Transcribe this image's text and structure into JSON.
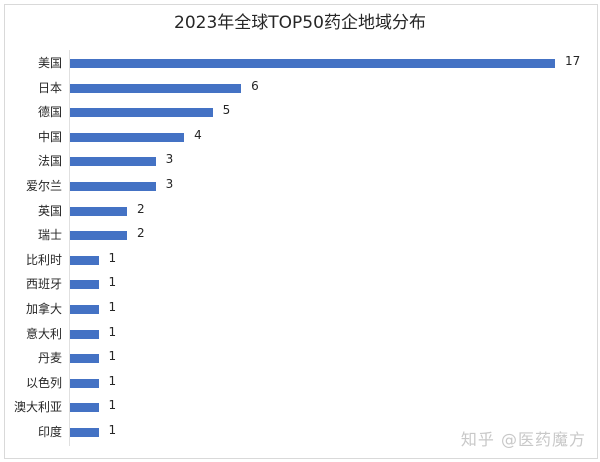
{
  "chart_data": {
    "type": "bar",
    "orientation": "horizontal",
    "title": "2023年全球TOP50药企地域分布",
    "xlabel": "",
    "ylabel": "",
    "categories": [
      "美国",
      "日本",
      "德国",
      "中国",
      "法国",
      "爱尔兰",
      "英国",
      "瑞士",
      "比利时",
      "西班牙",
      "加拿大",
      "意大利",
      "丹麦",
      "以色列",
      "澳大利亚",
      "印度"
    ],
    "values": [
      17,
      6,
      5,
      4,
      3,
      3,
      2,
      2,
      1,
      1,
      1,
      1,
      1,
      1,
      1,
      1
    ],
    "data_labels": true,
    "grid": false,
    "legend": "none",
    "xlim": [
      0,
      17
    ],
    "bar_color": "#4472C4"
  },
  "watermark": "知乎 @医药魔方"
}
